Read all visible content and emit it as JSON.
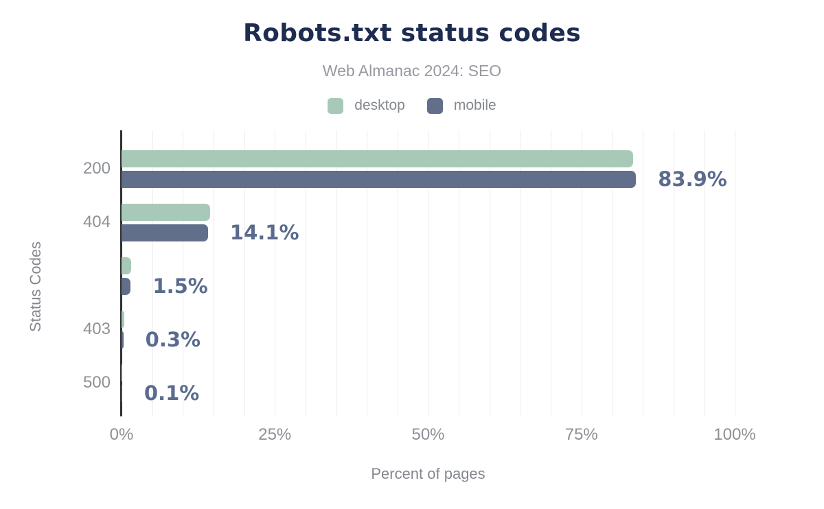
{
  "header": {
    "title": "Robots.txt status codes",
    "subtitle": "Web Almanac 2024: SEO"
  },
  "legend": [
    {
      "label": "desktop",
      "color": "#a8c9b8"
    },
    {
      "label": "mobile",
      "color": "#616f8a"
    }
  ],
  "chart_data": {
    "type": "bar",
    "orientation": "horizontal",
    "title": "Robots.txt status codes",
    "subtitle": "Web Almanac 2024: SEO",
    "xlabel": "Percent of pages",
    "ylabel": "Status Codes",
    "categories": [
      "200",
      "404",
      "",
      "403",
      "500"
    ],
    "series": [
      {
        "name": "desktop",
        "color": "#a8c9b8",
        "values": [
          83.4,
          14.4,
          1.6,
          0.4,
          0.1
        ]
      },
      {
        "name": "mobile",
        "color": "#616f8a",
        "values": [
          83.9,
          14.1,
          1.5,
          0.3,
          0.1
        ]
      }
    ],
    "value_labels": [
      "83.9%",
      "14.1%",
      "1.5%",
      "0.3%",
      "0.1%"
    ],
    "x_ticks": [
      {
        "label": "0%",
        "value": 0
      },
      {
        "label": "25%",
        "value": 25
      },
      {
        "label": "50%",
        "value": 50
      },
      {
        "label": "75%",
        "value": 75
      },
      {
        "label": "100%",
        "value": 100
      }
    ],
    "xlim": [
      0,
      100
    ],
    "grid_step": 5,
    "grid_on": true,
    "legend_position": "top"
  },
  "colors": {
    "title": "#1e2c50",
    "subtitle": "#9699a0",
    "tick_label": "#8d9196",
    "axis_title": "#84888e",
    "value_label": "#5a6b8e",
    "axis_line": "#2f3133",
    "gridline": "#ececec"
  }
}
